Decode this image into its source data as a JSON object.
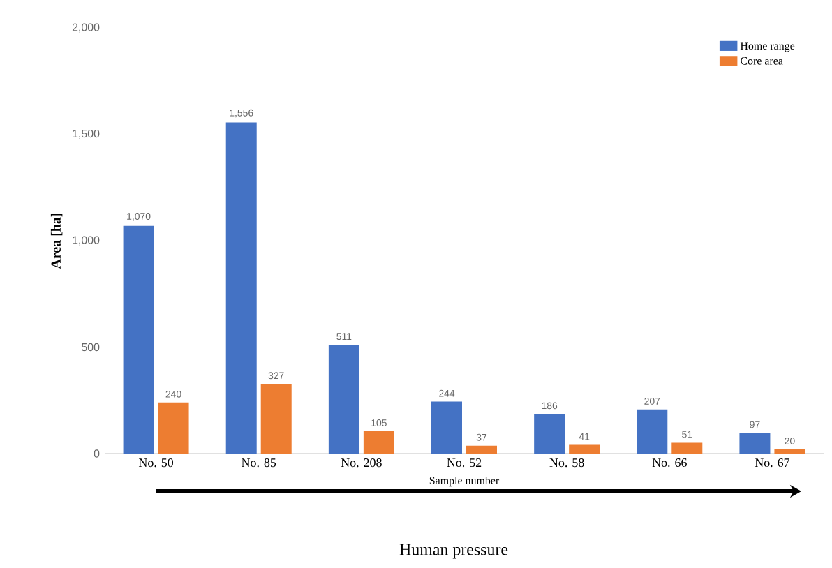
{
  "chart_data": {
    "type": "bar",
    "xlabel": "Sample number",
    "ylabel": "Area [ha]",
    "categories": [
      "No. 50",
      "No. 85",
      "No. 208",
      "No. 52",
      "No. 58",
      "No. 66",
      "No. 67"
    ],
    "series": [
      {
        "name": "Home range",
        "color": "#4472c4",
        "values": [
          1070,
          1556,
          511,
          244,
          186,
          207,
          97
        ],
        "value_labels": [
          "1,070",
          "1,556",
          "511",
          "244",
          "186",
          "207",
          "97"
        ]
      },
      {
        "name": "Core area",
        "color": "#ed7d31",
        "values": [
          240,
          327,
          105,
          37,
          41,
          51,
          20
        ],
        "value_labels": [
          "240",
          "327",
          "105",
          "37",
          "41",
          "51",
          "20"
        ]
      }
    ],
    "ylim": [
      0,
      2000
    ],
    "yticks": [
      0,
      500,
      {
        "value": 1000,
        "label": "1,000"
      },
      {
        "value": 1500,
        "label": "1,500"
      },
      {
        "value": 2000,
        "label": "2,000"
      }
    ],
    "legend": "top right",
    "grid": false,
    "annotations": [
      "Human pressure"
    ]
  }
}
